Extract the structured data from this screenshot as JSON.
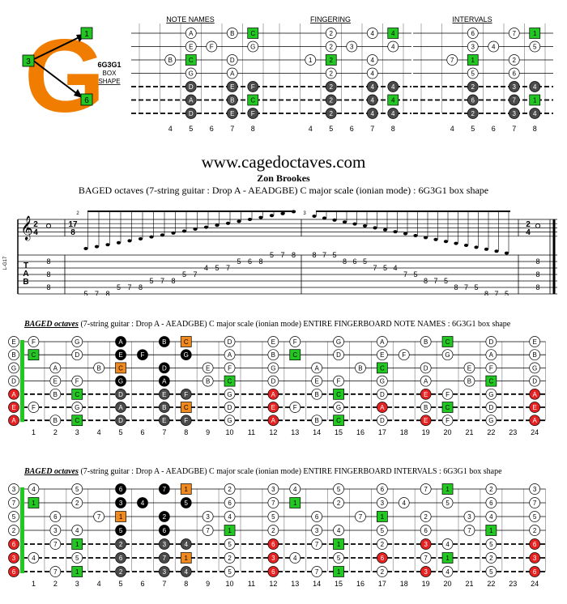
{
  "logo": {
    "letter": "G",
    "tags": [
      "1",
      "3",
      "6"
    ],
    "code": "6G3G1",
    "line2": "BOX",
    "line3": "SHAPE"
  },
  "mini_diagrams": [
    {
      "title": "NOTE NAMES",
      "kind": "names"
    },
    {
      "title": "FINGERING",
      "kind": "fingering"
    },
    {
      "title": "INTERVALS",
      "kind": "intervals"
    }
  ],
  "mini_frets": [
    "4",
    "5",
    "6",
    "7",
    "8"
  ],
  "site": "www.cagedoctaves.com",
  "author": "Zon Brookes",
  "subtitle": "BAGED octaves (7-string guitar : Drop A - AEADGBE) C major scale (ionian mode) : 6G3G1 box shape",
  "notation": {
    "side_label": "L-G17",
    "time_start": [
      "2",
      "4"
    ],
    "tuplet": [
      "17",
      "8"
    ],
    "tuplet_marks": [
      "2",
      "3"
    ],
    "time_end": [
      "2",
      "4"
    ],
    "tab_letters": [
      "T",
      "A",
      "B"
    ],
    "tab_open": [
      "8",
      "8",
      "8"
    ],
    "tab_close": [
      "8",
      "8",
      "8"
    ],
    "tab_run1": [
      "5",
      "7",
      "8",
      "5",
      "7",
      "8",
      "5",
      "7",
      "8",
      "5",
      "7",
      "4",
      "5",
      "7",
      "5",
      "6",
      "8",
      "5",
      "7",
      "8"
    ],
    "tab_run2": [
      "8",
      "7",
      "5",
      "8",
      "6",
      "5",
      "7",
      "5",
      "4",
      "7",
      "5",
      "8",
      "7",
      "5",
      "8",
      "7",
      "5",
      "8",
      "7",
      "5"
    ]
  },
  "fretboards": [
    {
      "title_bold": "BAGED octaves",
      "title_rest": "(7-string guitar : Drop A - AEADGBE) C major scale (ionian mode) ENTIRE FINGERBOARD NOTE NAMES : 6G3G1 box shape",
      "kind": "names"
    },
    {
      "title_bold": "BAGED octaves",
      "title_rest": "(7-string guitar : Drop A - AEADGBE) C major scale (ionian mode) ENTIRE FINGERBOARD INTERVALS : 6G3G1 box shape",
      "kind": "intervals"
    }
  ],
  "fret_numbers": [
    "1",
    "2",
    "3",
    "4",
    "5",
    "6",
    "7",
    "8",
    "9",
    "10",
    "11",
    "12",
    "13",
    "14",
    "15",
    "16",
    "17",
    "18",
    "19",
    "20",
    "21",
    "22",
    "23",
    "24"
  ],
  "colors": {
    "logo": "#F07D00",
    "green": "#22C722",
    "red": "#E52222",
    "orange": "#F08A1E",
    "dark": "#4A4A4A",
    "black": "#000000"
  }
}
